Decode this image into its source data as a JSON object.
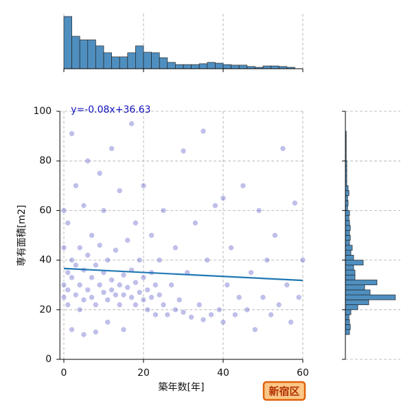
{
  "chart_data": {
    "type": "jointplot",
    "x_label": "築年数[年]",
    "y_label": "専有面積[m2]",
    "badge": "新宿区",
    "xlim": [
      -1,
      60
    ],
    "ylim": [
      0,
      100
    ],
    "xticks": [
      0,
      20,
      40,
      60
    ],
    "yticks": [
      0,
      20,
      40,
      60,
      80,
      100
    ],
    "grid": true,
    "point_color": "#2a2ab8",
    "x": [
      0,
      0,
      0,
      0,
      1,
      1,
      1,
      1,
      2,
      2,
      2,
      2,
      3,
      3,
      3,
      4,
      4,
      4,
      5,
      5,
      5,
      5,
      6,
      6,
      6,
      7,
      7,
      7,
      8,
      8,
      8,
      9,
      9,
      9,
      10,
      10,
      10,
      11,
      11,
      11,
      12,
      12,
      12,
      13,
      13,
      14,
      14,
      14,
      15,
      15,
      15,
      16,
      16,
      17,
      17,
      17,
      18,
      18,
      18,
      19,
      19,
      20,
      20,
      20,
      21,
      21,
      22,
      22,
      22,
      23,
      23,
      24,
      24,
      25,
      25,
      26,
      27,
      28,
      28,
      29,
      30,
      30,
      31,
      32,
      33,
      34,
      35,
      35,
      36,
      37,
      38,
      39,
      40,
      40,
      41,
      42,
      43,
      44,
      45,
      46,
      47,
      48,
      49,
      50,
      51,
      52,
      53,
      54,
      55,
      56,
      57,
      58,
      59,
      60
    ],
    "y": [
      25,
      30,
      45,
      60,
      22,
      35,
      28,
      55,
      40,
      33,
      91,
      12,
      26,
      38,
      70,
      30,
      45,
      20,
      24,
      36,
      62,
      10,
      28,
      42,
      80,
      33,
      25,
      50,
      22,
      38,
      11,
      30,
      46,
      75,
      27,
      35,
      60,
      24,
      40,
      15,
      32,
      28,
      85,
      26,
      44,
      30,
      22,
      68,
      34,
      26,
      12,
      29,
      48,
      25,
      36,
      95,
      31,
      22,
      55,
      27,
      40,
      24,
      33,
      70,
      28,
      20,
      35,
      25,
      50,
      30,
      18,
      26,
      40,
      22,
      60,
      18,
      30,
      20,
      45,
      24,
      84,
      19,
      35,
      17,
      55,
      22,
      92,
      16,
      40,
      18,
      62,
      20,
      65,
      15,
      30,
      45,
      18,
      25,
      70,
      20,
      35,
      12,
      60,
      25,
      40,
      18,
      50,
      22,
      85,
      30,
      15,
      63,
      25,
      40
    ],
    "regression": {
      "slope": -0.08,
      "intercept": 36.63,
      "label": "y=-0.08x+36.63",
      "color": "#1f77b4",
      "label_color": "#1010c0"
    },
    "x_hist": {
      "bins": [
        0,
        2,
        4,
        6,
        8,
        10,
        12,
        14,
        16,
        18,
        20,
        22,
        24,
        26,
        28,
        30,
        32,
        34,
        36,
        38,
        40,
        42,
        44,
        46,
        48,
        50,
        52,
        54,
        56,
        58,
        60
      ],
      "counts": [
        190,
        118,
        105,
        105,
        83,
        58,
        43,
        43,
        58,
        83,
        60,
        58,
        40,
        23,
        15,
        15,
        15,
        18,
        23,
        20,
        15,
        13,
        13,
        8,
        5,
        10,
        10,
        8,
        5,
        0
      ],
      "lim": [
        0,
        200
      ],
      "color": "#4f8fc0"
    },
    "y_hist": {
      "bins": [
        0,
        2,
        4,
        6,
        8,
        10,
        12,
        14,
        16,
        18,
        20,
        22,
        24,
        26,
        28,
        30,
        32,
        34,
        36,
        38,
        40,
        42,
        44,
        46,
        48,
        50,
        52,
        54,
        56,
        58,
        60,
        62,
        64,
        66,
        68,
        70,
        72,
        74,
        76,
        78,
        80,
        82,
        84,
        86,
        88,
        90,
        92,
        94,
        96,
        98,
        100
      ],
      "counts": [
        0,
        0,
        0,
        0,
        0,
        15,
        18,
        15,
        13,
        20,
        45,
        85,
        182,
        90,
        70,
        115,
        35,
        35,
        30,
        65,
        30,
        20,
        25,
        15,
        18,
        15,
        18,
        15,
        13,
        15,
        8,
        10,
        8,
        13,
        10,
        5,
        5,
        5,
        5,
        5,
        3,
        3,
        3,
        3,
        3,
        3,
        0,
        0,
        0,
        0
      ],
      "lim": [
        0,
        200
      ],
      "color": "#4f8fc0"
    }
  }
}
